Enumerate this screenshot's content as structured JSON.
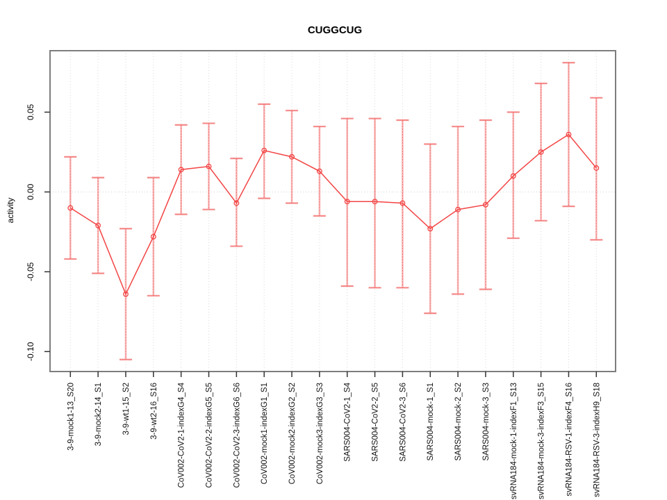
{
  "chart_data": {
    "type": "line",
    "title": "CUGGCUG",
    "xlabel": "",
    "ylabel": "activity",
    "legend": "none",
    "marker": "open-circle",
    "grid": {
      "vertical": "dotted-per-category",
      "zero_line": "dotted",
      "horizontal": "zero-only"
    },
    "ylim": [
      -0.1125,
      0.0885
    ],
    "yticks": {
      "values": [
        0.05,
        0.0,
        -0.05,
        -0.1
      ],
      "labels": [
        "0.05",
        "0.00",
        "-0.05",
        "-0.10"
      ]
    },
    "categories": [
      "3-9-mock1-13_S20",
      "3-9-mock2-14_S1",
      "3-9-wt1-15_S2",
      "3-9-wt2-16_S16",
      "CoV002-CoV2-1-indexG4_S4",
      "CoV002-CoV2-2-indexG5_S5",
      "CoV002-CoV2-3-indexG6_S6",
      "CoV002-mock1-indexG1_S1",
      "CoV002-mock2-indexG2_S2",
      "CoV002-mock3-indexG3_S3",
      "SARS004-CoV2-1_S4",
      "SARS004-CoV2-2_S5",
      "SARS004-CoV2-3_S6",
      "SARS004-mock-1_S1",
      "SARS004-mock-2_S2",
      "SARS004-mock-3_S3",
      "svRNA184-mock-1-indexF1_S13",
      "svRNA184-mock-3-indexF3_S15",
      "svRNA184-RSV-1-indexF4_S16",
      "svRNA184-RSV-3-indexH9_S18"
    ],
    "series": [
      {
        "name": "activity",
        "values": [
          -0.01,
          -0.021,
          -0.064,
          -0.028,
          0.014,
          0.016,
          -0.007,
          0.026,
          0.022,
          0.013,
          -0.006,
          -0.006,
          -0.007,
          -0.023,
          -0.011,
          -0.008,
          0.01,
          0.025,
          0.036,
          0.015
        ],
        "err_high": [
          0.022,
          0.009,
          -0.023,
          0.009,
          0.042,
          0.043,
          0.021,
          0.055,
          0.051,
          0.041,
          0.046,
          0.046,
          0.045,
          0.03,
          0.041,
          0.045,
          0.05,
          0.068,
          0.081,
          0.059
        ],
        "err_low": [
          -0.042,
          -0.051,
          -0.105,
          -0.065,
          -0.014,
          -0.011,
          -0.034,
          -0.004,
          -0.007,
          -0.015,
          -0.059,
          -0.06,
          -0.06,
          -0.076,
          -0.064,
          -0.061,
          -0.029,
          -0.018,
          -0.009,
          -0.03
        ]
      }
    ],
    "colors": {
      "series": "#f34444",
      "error_bar": "#f57d7d",
      "grid": "#d9d9d9",
      "zero_line": "#cfcfcf",
      "frame": "#7d7d7d",
      "tick": "#333333",
      "text": "#000000",
      "background": "#ffffff"
    }
  }
}
